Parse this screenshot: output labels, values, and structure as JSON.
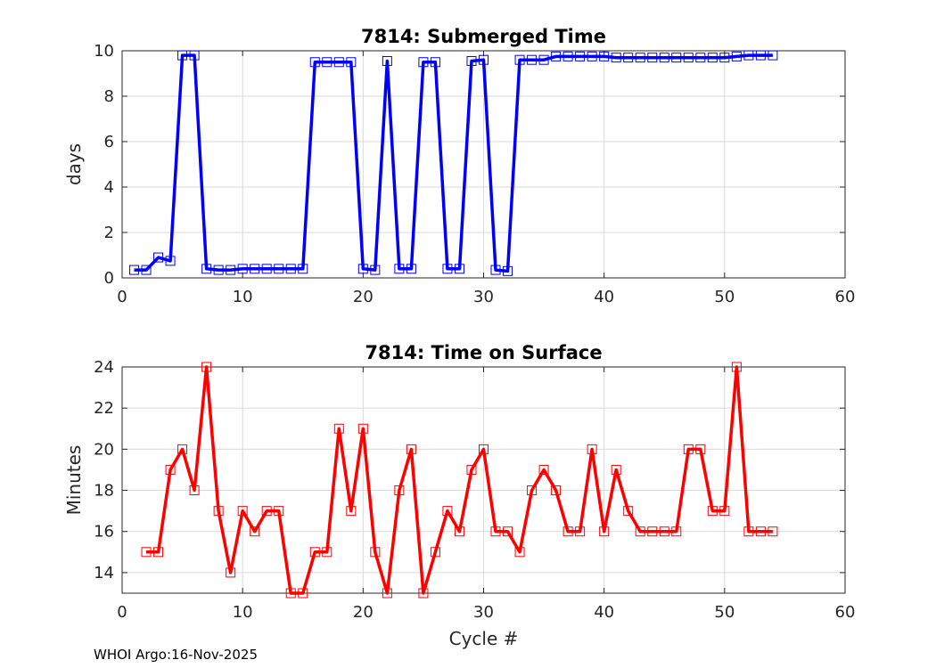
{
  "chart_data": [
    {
      "type": "line",
      "title": "7814: Submerged Time",
      "xlabel": "",
      "ylabel": "days",
      "xlim": [
        0,
        60
      ],
      "ylim": [
        0,
        10
      ],
      "xticks": [
        0,
        10,
        20,
        30,
        40,
        50,
        60
      ],
      "yticks": [
        0,
        2,
        4,
        6,
        8,
        10
      ],
      "grid": true,
      "color": "#0000ff",
      "marker": "square",
      "series": [
        {
          "name": "Submerged Time",
          "x": [
            1,
            2,
            3,
            4,
            5,
            6,
            7,
            8,
            9,
            10,
            11,
            12,
            13,
            14,
            15,
            16,
            17,
            18,
            19,
            20,
            21,
            22,
            23,
            24,
            25,
            26,
            27,
            28,
            29,
            30,
            31,
            32,
            33,
            34,
            35,
            36,
            37,
            38,
            39,
            40,
            41,
            42,
            43,
            44,
            45,
            46,
            47,
            48,
            49,
            50,
            51,
            52,
            53,
            54
          ],
          "values": [
            0.35,
            0.35,
            0.9,
            0.75,
            9.8,
            9.8,
            0.4,
            0.35,
            0.35,
            0.4,
            0.4,
            0.4,
            0.4,
            0.4,
            0.4,
            9.5,
            9.5,
            9.5,
            9.5,
            0.4,
            0.35,
            9.55,
            0.4,
            0.4,
            9.5,
            9.5,
            0.4,
            0.4,
            9.55,
            9.6,
            0.35,
            0.3,
            9.6,
            9.6,
            9.6,
            9.75,
            9.75,
            9.75,
            9.75,
            9.75,
            9.7,
            9.7,
            9.7,
            9.7,
            9.7,
            9.7,
            9.7,
            9.7,
            9.7,
            9.7,
            9.75,
            9.8,
            9.8,
            9.8
          ]
        }
      ]
    },
    {
      "type": "line",
      "title": "7814: Time on Surface",
      "xlabel": "Cycle #",
      "ylabel": "Minutes",
      "xlim": [
        0,
        60
      ],
      "ylim": [
        13,
        24
      ],
      "xticks": [
        0,
        10,
        20,
        30,
        40,
        50,
        60
      ],
      "yticks": [
        14,
        16,
        18,
        20,
        22,
        24
      ],
      "grid": true,
      "color": "#ff0000",
      "marker": "square",
      "series": [
        {
          "name": "Time on Surface",
          "x": [
            2,
            3,
            4,
            5,
            6,
            7,
            8,
            9,
            10,
            11,
            12,
            13,
            14,
            15,
            16,
            17,
            18,
            19,
            20,
            21,
            22,
            23,
            24,
            25,
            26,
            27,
            28,
            29,
            30,
            31,
            32,
            33,
            34,
            35,
            36,
            37,
            38,
            39,
            40,
            41,
            42,
            43,
            44,
            45,
            46,
            47,
            48,
            49,
            50,
            51,
            52,
            53,
            54
          ],
          "values": [
            15,
            15,
            19,
            20,
            18,
            24,
            17,
            14,
            17,
            16,
            17,
            17,
            13,
            13,
            15,
            15,
            21,
            17,
            21,
            15,
            13,
            18,
            20,
            13,
            15,
            17,
            16,
            19,
            20,
            16,
            16,
            15,
            18,
            19,
            18,
            16,
            16,
            20,
            16,
            19,
            17,
            16,
            16,
            16,
            16,
            20,
            20,
            17,
            17,
            24,
            16,
            16,
            16
          ]
        }
      ]
    }
  ],
  "footer": "WHOI Argo:16-Nov-2025"
}
